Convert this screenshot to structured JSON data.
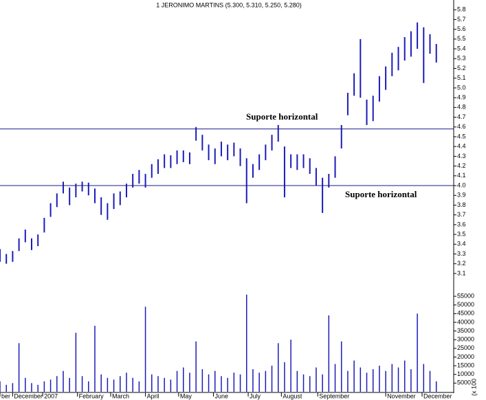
{
  "chart_data": [
    {
      "type": "range-bar",
      "title": "1 JERONIMO MARTINS (5.300, 5.310, 5.250, 5.280)",
      "annotations": [
        "Suporte horizontal",
        "Suporte horizontal"
      ],
      "reference_lines": [
        4.58,
        4.0
      ],
      "color": "#1a1ab8",
      "line_color": "#1a1a8c",
      "annotation_color": "#1a1ad0",
      "x": [
        0,
        4,
        8,
        12,
        16,
        20,
        24,
        28,
        32,
        36,
        40,
        44,
        48,
        52,
        56,
        60,
        64,
        68,
        72,
        76,
        80,
        84,
        88,
        92,
        96,
        100,
        104,
        108,
        112,
        116,
        120,
        124,
        128,
        132,
        136,
        140,
        144,
        148,
        152,
        156,
        160,
        164,
        168,
        172,
        176,
        180,
        184,
        188,
        192,
        196,
        200,
        204,
        208,
        212,
        216,
        220,
        224,
        228,
        232,
        236,
        240,
        244,
        248,
        252,
        256,
        260,
        264,
        268,
        272,
        276
      ],
      "high": [
        3.35,
        3.3,
        3.33,
        3.46,
        3.55,
        3.46,
        3.5,
        3.67,
        3.82,
        3.92,
        4.04,
        3.98,
        4.02,
        4.04,
        4.03,
        3.97,
        3.88,
        3.82,
        3.92,
        3.94,
        4.02,
        4.12,
        4.16,
        4.12,
        4.22,
        4.27,
        4.32,
        4.31,
        4.36,
        4.36,
        4.34,
        4.6,
        4.52,
        4.42,
        4.38,
        4.45,
        4.42,
        4.44,
        4.38,
        4.28,
        4.22,
        4.32,
        4.42,
        4.52,
        4.62,
        4.4,
        4.32,
        4.32,
        4.32,
        4.28,
        4.18,
        4.08,
        4.12,
        4.3,
        4.62,
        4.95,
        5.15,
        5.5,
        4.88,
        4.92,
        5.12,
        5.22,
        5.36,
        5.42,
        5.52,
        5.58,
        5.67,
        5.62,
        5.55,
        5.45
      ],
      "low": [
        3.22,
        3.2,
        3.22,
        3.33,
        3.42,
        3.34,
        3.38,
        3.52,
        3.68,
        3.78,
        3.92,
        3.8,
        3.88,
        3.94,
        3.9,
        3.82,
        3.7,
        3.65,
        3.76,
        3.8,
        3.88,
        3.98,
        4.02,
        3.98,
        4.08,
        4.12,
        4.18,
        4.18,
        4.22,
        4.24,
        4.22,
        4.46,
        4.36,
        4.26,
        4.22,
        4.3,
        4.26,
        4.3,
        4.2,
        3.82,
        4.08,
        4.16,
        4.26,
        4.36,
        4.45,
        3.88,
        4.18,
        4.16,
        4.18,
        4.12,
        4.0,
        3.72,
        3.98,
        4.08,
        4.38,
        4.72,
        4.92,
        4.9,
        4.62,
        4.66,
        4.86,
        4.98,
        5.12,
        5.18,
        5.28,
        5.32,
        5.4,
        5.05,
        5.35,
        5.26
      ],
      "xlim": [
        0,
        287
      ],
      "ylim": [
        2.98,
        5.9
      ],
      "yticks": [
        3.1,
        3.2,
        3.3,
        3.4,
        3.5,
        3.6,
        3.7,
        3.8,
        3.9,
        {
          "value": 4,
          "label": "4.0"
        },
        4.1,
        4.2,
        4.3,
        4.4,
        4.5,
        4.6,
        4.7,
        4.8,
        4.9,
        {
          "value": 5,
          "label": "5.0"
        },
        5.1,
        5.2,
        5.3,
        5.4,
        5.5,
        5.6,
        5.7,
        5.8
      ]
    },
    {
      "type": "bar",
      "color": "#1a1ab8",
      "unit_label": "(x 100",
      "x": [
        0,
        4,
        8,
        12,
        16,
        20,
        24,
        28,
        32,
        36,
        40,
        44,
        48,
        52,
        56,
        60,
        64,
        68,
        72,
        76,
        80,
        84,
        88,
        92,
        96,
        100,
        104,
        108,
        112,
        116,
        120,
        124,
        128,
        132,
        136,
        140,
        144,
        148,
        152,
        156,
        160,
        164,
        168,
        172,
        176,
        180,
        184,
        188,
        192,
        196,
        200,
        204,
        208,
        212,
        216,
        220,
        224,
        228,
        232,
        236,
        240,
        244,
        248,
        252,
        256,
        260,
        264,
        268,
        272,
        276
      ],
      "values": [
        6000,
        4000,
        5000,
        28000,
        8000,
        5000,
        4000,
        6000,
        7000,
        9000,
        12000,
        8000,
        34000,
        9000,
        6000,
        38000,
        10000,
        8000,
        7000,
        9000,
        11000,
        8000,
        6000,
        49000,
        10000,
        9000,
        8000,
        7000,
        12000,
        14000,
        11000,
        29000,
        13000,
        10000,
        12000,
        9000,
        8000,
        11000,
        10000,
        56000,
        13000,
        11000,
        12000,
        15000,
        28000,
        17000,
        30000,
        12000,
        10000,
        9000,
        14000,
        10000,
        44000,
        16000,
        29000,
        12000,
        18000,
        14000,
        11000,
        13000,
        15000,
        12000,
        16000,
        14000,
        18000,
        13000,
        45000,
        16000,
        12000,
        6000
      ],
      "xlim": [
        0,
        287
      ],
      "ylim": [
        0,
        59000
      ],
      "yticks": [
        5000,
        10000,
        15000,
        20000,
        25000,
        30000,
        35000,
        40000,
        45000,
        50000,
        55000
      ],
      "xticks": [
        {
          "value": 0,
          "label": "ber"
        },
        {
          "value": 8,
          "label": "December"
        },
        {
          "value": 27,
          "label": "2007"
        },
        {
          "value": 49,
          "label": "February"
        },
        {
          "value": 70,
          "label": "March"
        },
        {
          "value": 92,
          "label": "April"
        },
        {
          "value": 113,
          "label": "May"
        },
        {
          "value": 135,
          "label": "June"
        },
        {
          "value": 157,
          "label": "July"
        },
        {
          "value": 178,
          "label": "August"
        },
        {
          "value": 201,
          "label": "September"
        },
        {
          "value": 244,
          "label": "November"
        },
        {
          "value": 267,
          "label": "December"
        }
      ]
    }
  ]
}
